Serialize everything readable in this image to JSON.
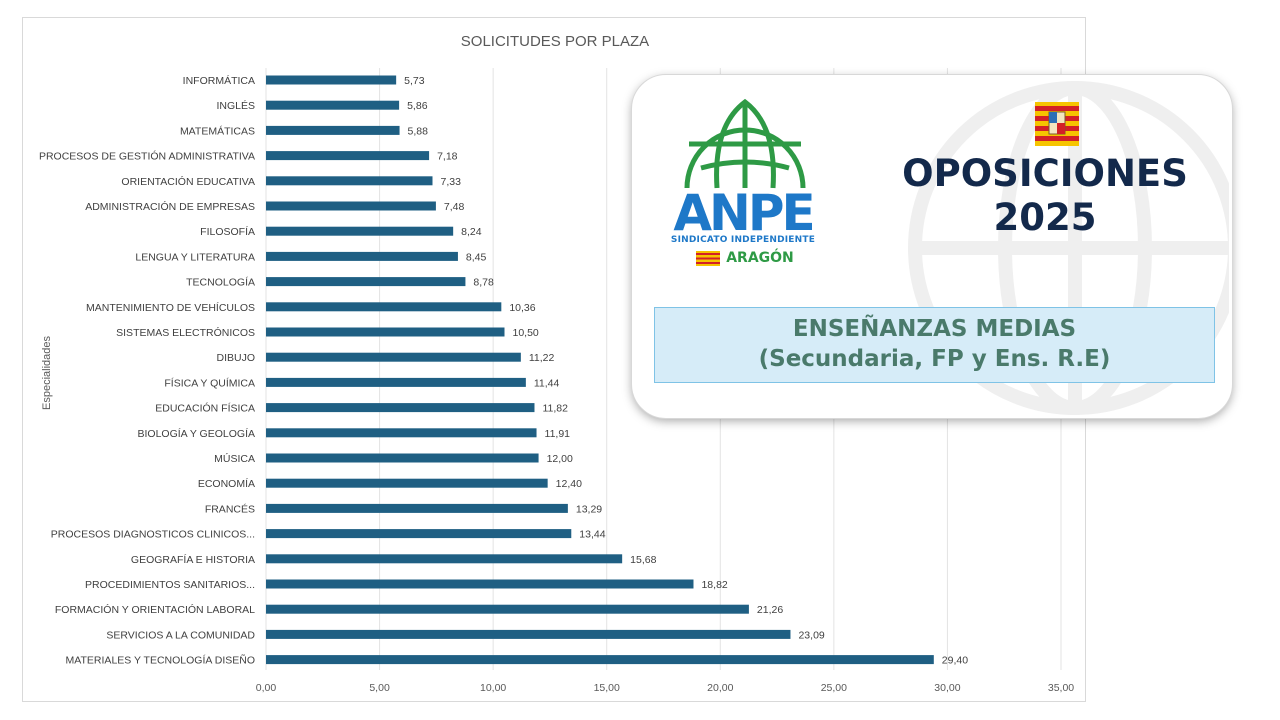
{
  "chart_data": {
    "type": "bar",
    "orientation": "horizontal",
    "title": "SOLICITUDES POR PLAZA",
    "ylabel": "Especialidades",
    "xlim": [
      0,
      35
    ],
    "x_ticks": [
      "0,00",
      "5,00",
      "10,00",
      "15,00",
      "20,00",
      "25,00",
      "30,00",
      "35,00"
    ],
    "grid": true,
    "categories": [
      "INFORMÁTICA",
      "INGLÉS",
      "MATEMÁTICAS",
      "PROCESOS DE GESTIÓN ADMINISTRATIVA",
      "ORIENTACIÓN EDUCATIVA",
      "ADMINISTRACIÓN DE EMPRESAS",
      "FILOSOFÍA",
      "LENGUA Y LITERATURA",
      "TECNOLOGÍA",
      "MANTENIMIENTO DE VEHÍCULOS",
      "SISTEMAS ELECTRÓNICOS",
      "DIBUJO",
      "FÍSICA Y QUÍMICA",
      "EDUCACIÓN FÍSICA",
      "BIOLOGÍA Y GEOLOGÍA",
      "MÚSICA",
      "ECONOMÍA",
      "FRANCÉS",
      "PROCESOS DIAGNOSTICOS CLINICOS...",
      "GEOGRAFÍA E HISTORIA",
      "PROCEDIMIENTOS SANITARIOS...",
      "FORMACIÓN Y ORIENTACIÓN LABORAL",
      "SERVICIOS A LA COMUNIDAD",
      "MATERIALES Y TECNOLOGÍA DISEÑO"
    ],
    "values": [
      5.73,
      5.86,
      5.88,
      7.18,
      7.33,
      7.48,
      8.24,
      8.45,
      8.78,
      10.36,
      10.5,
      11.22,
      11.44,
      11.82,
      11.91,
      12.0,
      12.4,
      13.29,
      13.44,
      15.68,
      18.82,
      21.26,
      23.09,
      29.4
    ],
    "value_labels": [
      "5,73",
      "5,86",
      "5,88",
      "7,18",
      "7,33",
      "7,48",
      "8,24",
      "8,45",
      "8,78",
      "10,36",
      "10,50",
      "11,22",
      "11,44",
      "11,82",
      "11,91",
      "12,00",
      "12,40",
      "13,29",
      "13,44",
      "15,68",
      "18,82",
      "21,26",
      "23,09",
      "29,40"
    ],
    "bar_color": "#1f5f83"
  },
  "promo": {
    "logo_brand": "ANPE",
    "logo_tagline": "SINDICATO INDEPENDIENTE",
    "logo_region": "ARAGÓN",
    "title_line1": "OPOSICIONES",
    "title_line2": "2025",
    "banner_title": "ENSEÑANZAS MEDIAS",
    "banner_subtitle": "(Secundaria, FP y Ens. R.E)",
    "icons": [
      "globe-icon",
      "aragon-flag-icon",
      "globe-watermark-icon"
    ],
    "colors": {
      "brand_blue": "#1e78c8",
      "brand_green": "#2e9a45",
      "title_navy": "#13294b",
      "banner_bg": "#d6ecf8",
      "banner_text": "#4a7a6b"
    }
  }
}
